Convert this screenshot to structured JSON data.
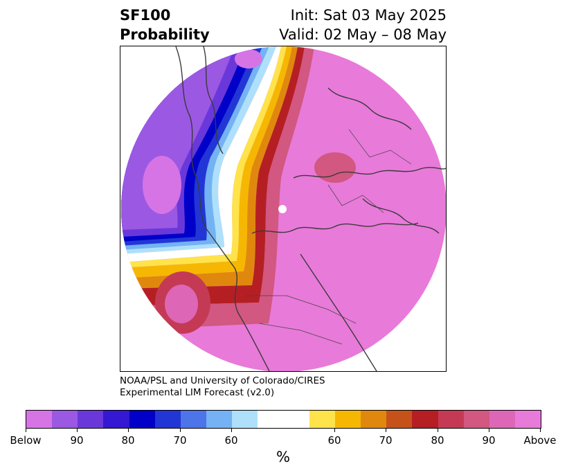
{
  "header": {
    "title_line1": "SF100",
    "title_line2": "Probability",
    "init": "Init: Sat 03 May 2025",
    "valid": "Valid: 02 May – 08 May"
  },
  "credit": {
    "line1": "NOAA/PSL and University of Colorado/CIRES",
    "line2": "Experimental LIM Forecast (v2.0)"
  },
  "map": {
    "projection": "north-polar-stereographic",
    "pattern": "Below-normal probabilities over the North Pacific / west of North America; a narrow band of above-normal probabilities along western North America coast; above-normal probabilities over most of the Arctic, Eurasia and North America"
  },
  "colorbar": {
    "unit": "%",
    "colors": [
      "#d674e6",
      "#9b58e3",
      "#6a38da",
      "#3418d3",
      "#0000c8",
      "#2236d6",
      "#4d74e8",
      "#74b2f3",
      "#aee0fb",
      "#ffffff",
      "#ffffff",
      "#ffe34a",
      "#f6b703",
      "#e0880e",
      "#c6521a",
      "#b51f23",
      "#c43a55",
      "#d25781",
      "#dd66b6",
      "#e87ad9"
    ],
    "tick_labels": [
      "Below",
      "90",
      "80",
      "70",
      "60",
      "60",
      "70",
      "80",
      "90",
      "Above"
    ]
  }
}
